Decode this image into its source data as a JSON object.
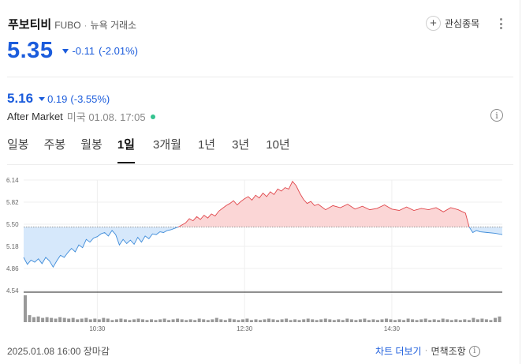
{
  "stock": {
    "name": "푸보티비",
    "ticker": "FUBO",
    "separator": "·",
    "exchange": "뉴욕 거래소",
    "price": "5.35",
    "change": "-0.11",
    "change_pct": "(-2.01%)",
    "direction": "down"
  },
  "actions": {
    "watch_label": "관심종목",
    "watch_icon": "plus-circle-icon",
    "more_icon": "more-vertical-icon"
  },
  "after_market": {
    "price": "5.16",
    "change": "0.19",
    "change_pct": "(-3.55%)",
    "label": "After Market",
    "time": "미국 01.08. 17:05",
    "info_icon": "info-icon"
  },
  "tabs": [
    {
      "label": "일봉",
      "active": false
    },
    {
      "label": "주봉",
      "active": false
    },
    {
      "label": "월봉",
      "active": false
    },
    {
      "label": "1일",
      "active": true
    },
    {
      "label": "3개월",
      "active": false
    },
    {
      "label": "1년",
      "active": false
    },
    {
      "label": "3년",
      "active": false
    },
    {
      "label": "10년",
      "active": false
    }
  ],
  "colors": {
    "down": "#1b5cdc",
    "up_line": "#e0474c",
    "up_fill": "#fbd6d6",
    "down_line": "#3d8bd9",
    "down_fill": "#d6e8fb",
    "volume": "#999999"
  },
  "chart_data": {
    "type": "area",
    "y_ticks": [
      "6.14",
      "5.82",
      "5.50",
      "5.18",
      "4.86",
      "4.54"
    ],
    "ylim": [
      4.54,
      6.14
    ],
    "baseline": 5.46,
    "x_ticks": [
      "10:30",
      "12:30",
      "14:30"
    ],
    "x_tick_positions": [
      1,
      3,
      5
    ],
    "xlim": [
      0,
      6.5
    ],
    "grid": true,
    "price": {
      "x": [
        0,
        0.05,
        0.1,
        0.15,
        0.2,
        0.25,
        0.3,
        0.35,
        0.4,
        0.45,
        0.5,
        0.55,
        0.6,
        0.65,
        0.7,
        0.75,
        0.8,
        0.85,
        0.9,
        0.95,
        1.0,
        1.05,
        1.1,
        1.15,
        1.2,
        1.25,
        1.3,
        1.35,
        1.4,
        1.45,
        1.5,
        1.55,
        1.6,
        1.65,
        1.7,
        1.75,
        1.8,
        1.85,
        1.9,
        1.95,
        2.0,
        2.05,
        2.1,
        2.15,
        2.2,
        2.25,
        2.3,
        2.35,
        2.4,
        2.45,
        2.5,
        2.55,
        2.6,
        2.65,
        2.7,
        2.75,
        2.8,
        2.85,
        2.9,
        2.95,
        3.0,
        3.05,
        3.1,
        3.15,
        3.2,
        3.25,
        3.3,
        3.35,
        3.4,
        3.45,
        3.5,
        3.55,
        3.6,
        3.65,
        3.7,
        3.75,
        3.8,
        3.85,
        3.9,
        3.95,
        4.0,
        4.1,
        4.2,
        4.3,
        4.4,
        4.5,
        4.6,
        4.7,
        4.8,
        4.9,
        5.0,
        5.1,
        5.2,
        5.3,
        5.4,
        5.5,
        5.6,
        5.7,
        5.8,
        5.9,
        6.0,
        6.05,
        6.1,
        6.15,
        6.2,
        6.3,
        6.4,
        6.5
      ],
      "y": [
        5.02,
        4.92,
        4.98,
        4.95,
        5.0,
        4.93,
        5.02,
        4.97,
        4.88,
        4.97,
        5.05,
        5.02,
        5.09,
        5.15,
        5.1,
        5.2,
        5.16,
        5.28,
        5.24,
        5.3,
        5.32,
        5.36,
        5.38,
        5.33,
        5.41,
        5.35,
        5.2,
        5.28,
        5.22,
        5.27,
        5.21,
        5.31,
        5.24,
        5.33,
        5.29,
        5.36,
        5.35,
        5.39,
        5.38,
        5.41,
        5.42,
        5.44,
        5.46,
        5.49,
        5.52,
        5.58,
        5.55,
        5.61,
        5.57,
        5.63,
        5.59,
        5.65,
        5.62,
        5.69,
        5.73,
        5.77,
        5.8,
        5.84,
        5.78,
        5.83,
        5.87,
        5.9,
        5.85,
        5.92,
        5.88,
        5.95,
        5.9,
        5.97,
        5.93,
        6.01,
        5.98,
        6.03,
        6.01,
        6.12,
        6.06,
        5.95,
        5.86,
        5.8,
        5.83,
        5.77,
        5.79,
        5.71,
        5.77,
        5.74,
        5.79,
        5.72,
        5.76,
        5.71,
        5.73,
        5.78,
        5.72,
        5.7,
        5.75,
        5.7,
        5.73,
        5.71,
        5.74,
        5.68,
        5.74,
        5.71,
        5.66,
        5.46,
        5.38,
        5.41,
        5.39,
        5.38,
        5.37,
        5.35
      ]
    },
    "volume": {
      "values": [
        38,
        10,
        7,
        8,
        6,
        7,
        6,
        5,
        7,
        6,
        5,
        6,
        4,
        5,
        6,
        4,
        5,
        4,
        6,
        5,
        3,
        4,
        5,
        4,
        3,
        4,
        5,
        4,
        3,
        4,
        3,
        4,
        5,
        3,
        4,
        5,
        4,
        3,
        4,
        3,
        5,
        4,
        3,
        4,
        6,
        4,
        3,
        5,
        4,
        3,
        4,
        5,
        3,
        4,
        3,
        4,
        5,
        4,
        3,
        4,
        5,
        3,
        4,
        3,
        4,
        5,
        4,
        3,
        4,
        5,
        4,
        3,
        4,
        3,
        5,
        4,
        3,
        4,
        5,
        3,
        4,
        3,
        4,
        5,
        4,
        3,
        4,
        3,
        5,
        4,
        3,
        4,
        5,
        3,
        4,
        3,
        5,
        4,
        3,
        4,
        3,
        4,
        3,
        6,
        4,
        5,
        4,
        3,
        6,
        8
      ]
    }
  },
  "footer": {
    "date": "2025.01.08 16:00 장마감",
    "chart_link": "차트 더보기",
    "dot": "·",
    "disclaimer": "면책조항",
    "disclaimer_icon": "info-icon"
  }
}
